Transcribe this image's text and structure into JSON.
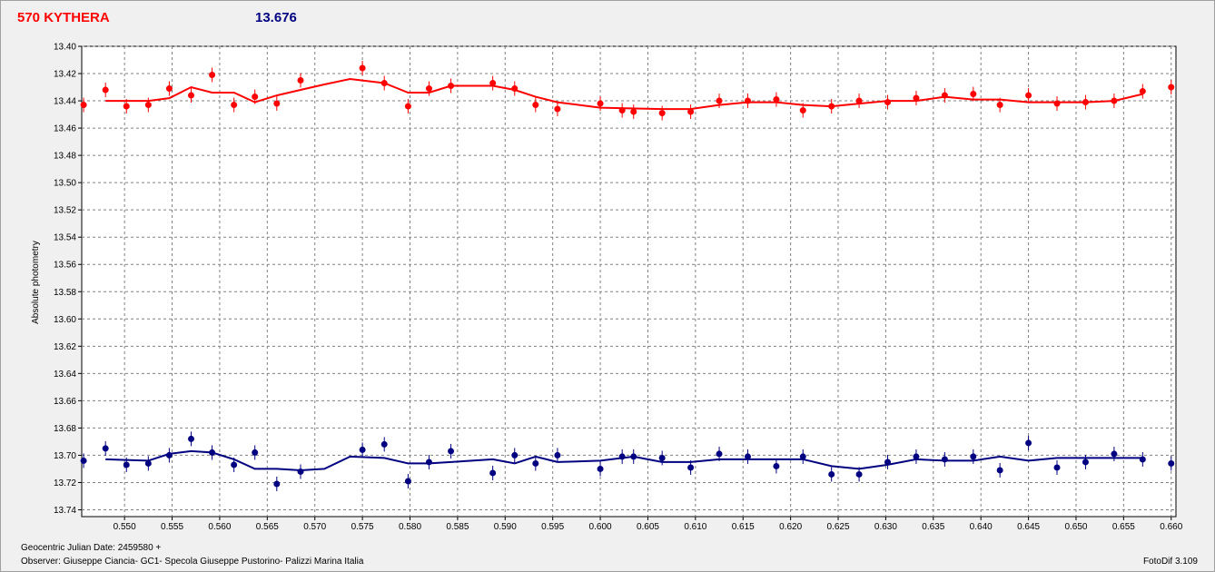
{
  "header": {
    "object_name": "570 KYTHERA",
    "magnitude": "13.676"
  },
  "footer": {
    "julian_date_label": "Geocentric Julian Date: 2459580 +",
    "observer": "Observer: Giuseppe Ciancia- GC1- Specola Giuseppe Pustorino- Palizzi Marina Italia",
    "software": "FotoDif 3.109"
  },
  "colors": {
    "series_top": "#ff0000",
    "series_bottom": "#000080",
    "grid": "#808080",
    "plot_bg": "#ffffff"
  },
  "chart_data": {
    "type": "scatter",
    "title": "",
    "xlabel": "",
    "ylabel": "Absolute photometry",
    "xlim": [
      0.5455,
      0.6605
    ],
    "ylim": [
      13.4,
      13.745
    ],
    "y_inverted": true,
    "grid": true,
    "x_ticks": [
      "0.550",
      "0.555",
      "0.560",
      "0.565",
      "0.570",
      "0.575",
      "0.580",
      "0.585",
      "0.590",
      "0.595",
      "0.600",
      "0.605",
      "0.610",
      "0.615",
      "0.620",
      "0.625",
      "0.630",
      "0.635",
      "0.640",
      "0.645",
      "0.650",
      "0.655",
      "0.660"
    ],
    "y_ticks": [
      "13.40",
      "13.42",
      "13.44",
      "13.46",
      "13.48",
      "13.50",
      "13.52",
      "13.54",
      "13.56",
      "13.58",
      "13.60",
      "13.62",
      "13.64",
      "13.66",
      "13.68",
      "13.70",
      "13.72",
      "13.74"
    ],
    "series": [
      {
        "points": [
          [
            0.5457,
            13.443
          ],
          [
            0.548,
            13.432
          ],
          [
            0.5502,
            13.444
          ],
          [
            0.5525,
            13.443
          ],
          [
            0.5547,
            13.431
          ],
          [
            0.557,
            13.436
          ],
          [
            0.5592,
            13.421
          ],
          [
            0.5615,
            13.443
          ],
          [
            0.5637,
            13.437
          ],
          [
            0.566,
            13.442
          ],
          [
            0.5685,
            13.425
          ],
          [
            0.575,
            13.416
          ],
          [
            0.5773,
            13.427
          ],
          [
            0.5798,
            13.444
          ],
          [
            0.582,
            13.431
          ],
          [
            0.5843,
            13.429
          ],
          [
            0.5887,
            13.427
          ],
          [
            0.591,
            13.431
          ],
          [
            0.5932,
            13.443
          ],
          [
            0.5955,
            13.446
          ],
          [
            0.6,
            13.442
          ],
          [
            0.6023,
            13.447
          ],
          [
            0.6035,
            13.448
          ],
          [
            0.6065,
            13.449
          ],
          [
            0.6095,
            13.448
          ],
          [
            0.6125,
            13.44
          ],
          [
            0.6155,
            13.44
          ],
          [
            0.6185,
            13.439
          ],
          [
            0.6213,
            13.447
          ],
          [
            0.6243,
            13.444
          ],
          [
            0.6272,
            13.44
          ],
          [
            0.6302,
            13.441
          ],
          [
            0.6332,
            13.438
          ],
          [
            0.6362,
            13.436
          ],
          [
            0.6392,
            13.435
          ],
          [
            0.642,
            13.443
          ],
          [
            0.645,
            13.436
          ],
          [
            0.648,
            13.442
          ],
          [
            0.651,
            13.441
          ],
          [
            0.654,
            13.44
          ],
          [
            0.657,
            13.433
          ],
          [
            0.66,
            13.43
          ]
        ],
        "fit": [
          [
            0.548,
            13.44
          ],
          [
            0.5525,
            13.44
          ],
          [
            0.5547,
            13.438
          ],
          [
            0.557,
            13.43
          ],
          [
            0.5592,
            13.434
          ],
          [
            0.5615,
            13.434
          ],
          [
            0.5637,
            13.441
          ],
          [
            0.566,
            13.436
          ],
          [
            0.5685,
            13.432
          ],
          [
            0.571,
            13.428
          ],
          [
            0.5737,
            13.424
          ],
          [
            0.5773,
            13.427
          ],
          [
            0.5798,
            13.434
          ],
          [
            0.582,
            13.434
          ],
          [
            0.5843,
            13.429
          ],
          [
            0.5887,
            13.429
          ],
          [
            0.591,
            13.432
          ],
          [
            0.5932,
            13.437
          ],
          [
            0.5955,
            13.441
          ],
          [
            0.6,
            13.445
          ],
          [
            0.6065,
            13.446
          ],
          [
            0.6095,
            13.446
          ],
          [
            0.6125,
            13.443
          ],
          [
            0.6155,
            13.441
          ],
          [
            0.6185,
            13.441
          ],
          [
            0.6213,
            13.443
          ],
          [
            0.6243,
            13.444
          ],
          [
            0.6272,
            13.442
          ],
          [
            0.6302,
            13.44
          ],
          [
            0.6332,
            13.44
          ],
          [
            0.6362,
            13.437
          ],
          [
            0.6392,
            13.439
          ],
          [
            0.642,
            13.439
          ],
          [
            0.645,
            13.441
          ],
          [
            0.648,
            13.441
          ],
          [
            0.651,
            13.441
          ],
          [
            0.654,
            13.44
          ],
          [
            0.657,
            13.435
          ]
        ]
      },
      {
        "points": [
          [
            0.5457,
            13.704
          ],
          [
            0.548,
            13.695
          ],
          [
            0.5502,
            13.707
          ],
          [
            0.5525,
            13.706
          ],
          [
            0.5547,
            13.7
          ],
          [
            0.557,
            13.688
          ],
          [
            0.5592,
            13.698
          ],
          [
            0.5615,
            13.707
          ],
          [
            0.5637,
            13.698
          ],
          [
            0.566,
            13.721
          ],
          [
            0.5685,
            13.712
          ],
          [
            0.575,
            13.696
          ],
          [
            0.5773,
            13.692
          ],
          [
            0.5798,
            13.719
          ],
          [
            0.582,
            13.705
          ],
          [
            0.5843,
            13.697
          ],
          [
            0.5887,
            13.713
          ],
          [
            0.591,
            13.7
          ],
          [
            0.5932,
            13.706
          ],
          [
            0.5955,
            13.7
          ],
          [
            0.6,
            13.71
          ],
          [
            0.6023,
            13.701
          ],
          [
            0.6035,
            13.701
          ],
          [
            0.6065,
            13.702
          ],
          [
            0.6095,
            13.709
          ],
          [
            0.6125,
            13.699
          ],
          [
            0.6155,
            13.701
          ],
          [
            0.6185,
            13.708
          ],
          [
            0.6213,
            13.701
          ],
          [
            0.6243,
            13.714
          ],
          [
            0.6272,
            13.714
          ],
          [
            0.6302,
            13.705
          ],
          [
            0.6332,
            13.701
          ],
          [
            0.6362,
            13.703
          ],
          [
            0.6392,
            13.701
          ],
          [
            0.642,
            13.711
          ],
          [
            0.645,
            13.691
          ],
          [
            0.648,
            13.709
          ],
          [
            0.651,
            13.705
          ],
          [
            0.654,
            13.699
          ],
          [
            0.657,
            13.703
          ],
          [
            0.66,
            13.706
          ]
        ],
        "fit": [
          [
            0.548,
            13.703
          ],
          [
            0.5525,
            13.704
          ],
          [
            0.5547,
            13.699
          ],
          [
            0.557,
            13.697
          ],
          [
            0.5592,
            13.698
          ],
          [
            0.5615,
            13.703
          ],
          [
            0.5637,
            13.71
          ],
          [
            0.566,
            13.71
          ],
          [
            0.5685,
            13.711
          ],
          [
            0.571,
            13.71
          ],
          [
            0.5737,
            13.701
          ],
          [
            0.5773,
            13.702
          ],
          [
            0.5798,
            13.706
          ],
          [
            0.582,
            13.706
          ],
          [
            0.5843,
            13.705
          ],
          [
            0.5887,
            13.703
          ],
          [
            0.591,
            13.706
          ],
          [
            0.5932,
            13.701
          ],
          [
            0.5955,
            13.705
          ],
          [
            0.6,
            13.704
          ],
          [
            0.6035,
            13.701
          ],
          [
            0.6065,
            13.705
          ],
          [
            0.6095,
            13.705
          ],
          [
            0.6125,
            13.703
          ],
          [
            0.6155,
            13.703
          ],
          [
            0.6185,
            13.703
          ],
          [
            0.6213,
            13.703
          ],
          [
            0.6243,
            13.708
          ],
          [
            0.6272,
            13.71
          ],
          [
            0.6302,
            13.707
          ],
          [
            0.6332,
            13.703
          ],
          [
            0.6362,
            13.704
          ],
          [
            0.6392,
            13.704
          ],
          [
            0.642,
            13.701
          ],
          [
            0.645,
            13.704
          ],
          [
            0.648,
            13.702
          ],
          [
            0.651,
            13.702
          ],
          [
            0.654,
            13.702
          ],
          [
            0.657,
            13.702
          ]
        ]
      }
    ]
  }
}
